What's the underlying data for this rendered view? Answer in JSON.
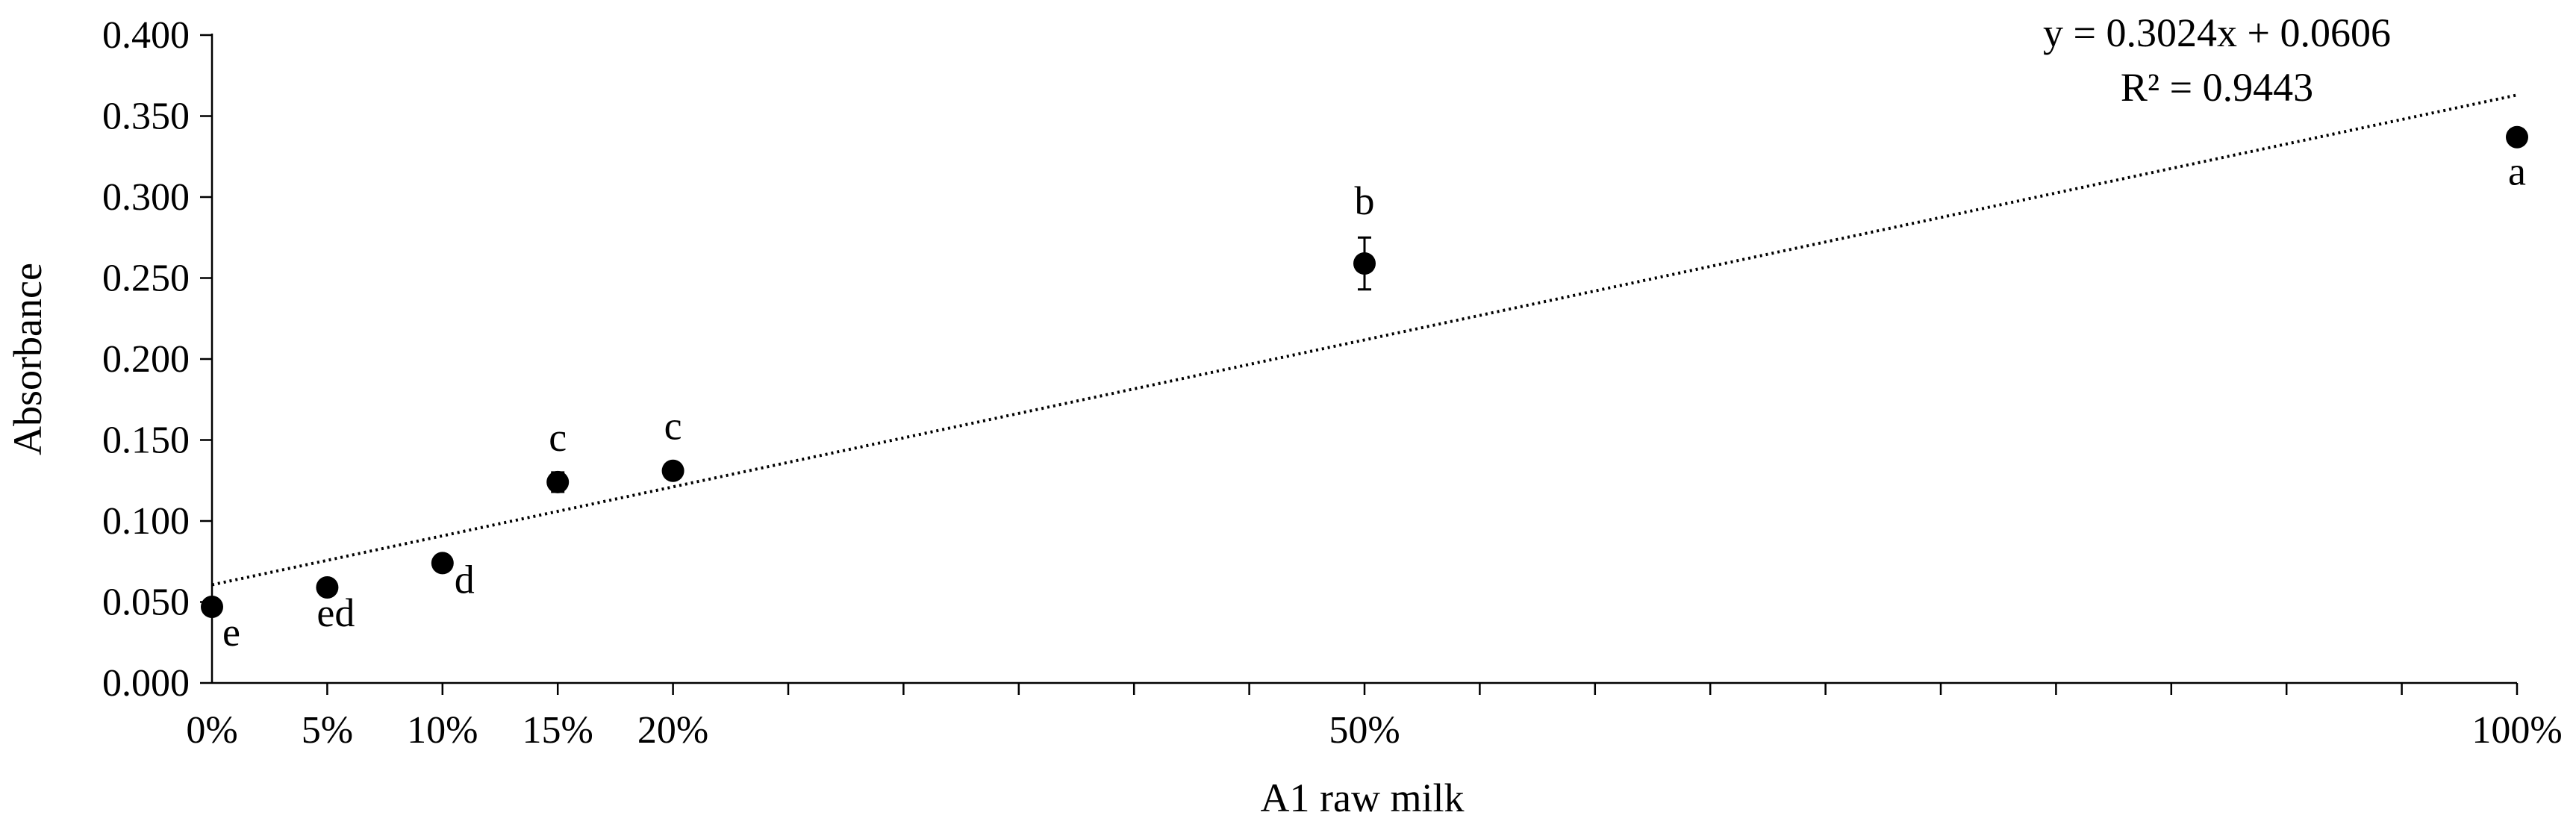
{
  "chart_data": {
    "type": "scatter",
    "xlabel": "A1 raw milk",
    "ylabel": "Absorbance",
    "xlim": [
      0,
      1
    ],
    "ylim": [
      0,
      0.4
    ],
    "y_ticks": [
      "0.000",
      "0.050",
      "0.100",
      "0.150",
      "0.200",
      "0.250",
      "0.300",
      "0.350",
      "0.400"
    ],
    "x_ticks": [
      {
        "value": 0.0,
        "label": "0%"
      },
      {
        "value": 0.05,
        "label": "5%"
      },
      {
        "value": 0.1,
        "label": "10%"
      },
      {
        "value": 0.15,
        "label": "15%"
      },
      {
        "value": 0.2,
        "label": "20%"
      },
      {
        "value": 0.5,
        "label": "50%"
      },
      {
        "value": 1.0,
        "label": "100%"
      }
    ],
    "points": [
      {
        "x": 0.0,
        "y": 0.047,
        "err": 0.002,
        "label": "e"
      },
      {
        "x": 0.05,
        "y": 0.059,
        "err": 0.002,
        "label": "ed"
      },
      {
        "x": 0.1,
        "y": 0.074,
        "err": 0.002,
        "label": "d"
      },
      {
        "x": 0.15,
        "y": 0.124,
        "err": 0.006,
        "label": "c"
      },
      {
        "x": 0.2,
        "y": 0.131,
        "err": 0.003,
        "label": "c"
      },
      {
        "x": 0.5,
        "y": 0.259,
        "err": 0.016,
        "label": "b"
      },
      {
        "x": 1.0,
        "y": 0.337,
        "err": 0.002,
        "label": "a"
      }
    ],
    "trendline": {
      "type": "linear",
      "slope": 0.3024,
      "intercept": 0.0606,
      "equation": "y = 0.3024x + 0.0606",
      "r_squared": "R² = 0.9443"
    },
    "grid": false,
    "colors": {
      "marker": "#000000",
      "trendline": "#000000"
    }
  }
}
